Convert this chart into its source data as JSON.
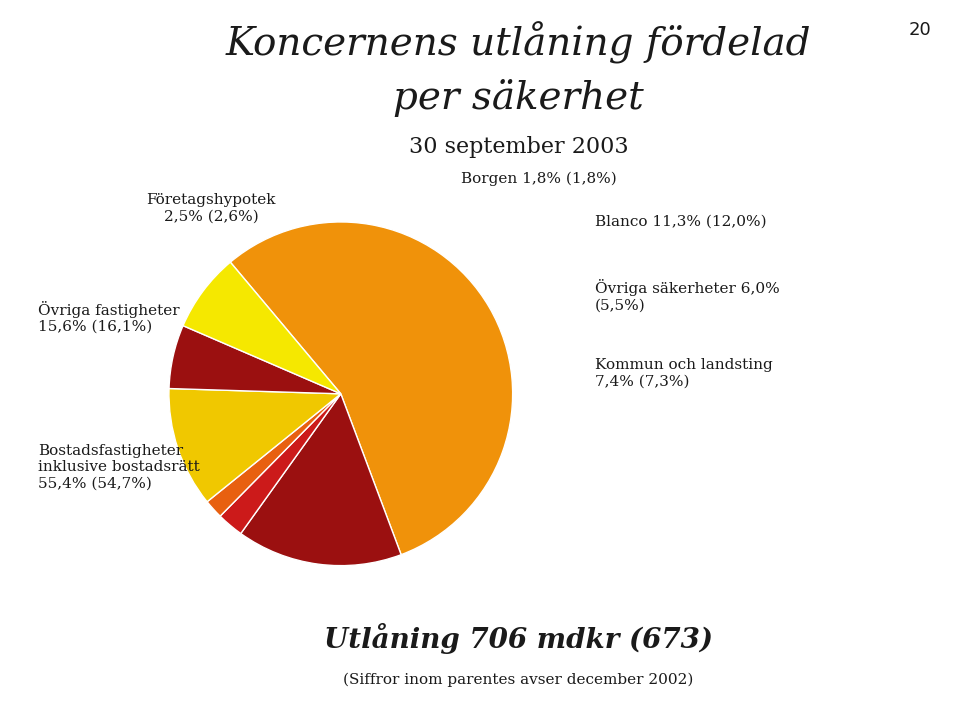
{
  "title_line1": "Koncernens utlåning fördelad",
  "title_line2": "per säkerhet",
  "subtitle": "30 september 2003",
  "page_number": "20",
  "slices": [
    {
      "label": "Bostadsfastigheter\ninklusive bostadsrätt\n55,4% (54,7%)",
      "value": 55.4,
      "color": "#F0920A",
      "label_pos": "left-bottom"
    },
    {
      "label": "Övriga fastigheter\n15,6% (16,1%)",
      "value": 15.6,
      "color": "#9B1010",
      "label_pos": "left"
    },
    {
      "label": "Företagshypotek\n2,5% (2,6%)",
      "value": 2.5,
      "color": "#CC1A1A",
      "label_pos": "top-left"
    },
    {
      "label": "Borgen 1,8% (1,8%)",
      "value": 1.8,
      "color": "#E86010",
      "label_pos": "top"
    },
    {
      "label": "Blanco 11,3% (12,0%)",
      "value": 11.3,
      "color": "#F0C800",
      "label_pos": "top-right"
    },
    {
      "label": "Övriga säkerheter 6,0%\n(5,5%)",
      "value": 6.0,
      "color": "#9B1010",
      "label_pos": "right"
    },
    {
      "label": "Kommun och landsting\n7,4% (7,3%)",
      "value": 7.4,
      "color": "#F5E800",
      "label_pos": "right-bottom"
    }
  ],
  "bottom_text1": "Utlåning 706 mdkr (673)",
  "bottom_text2": "(Siffror inom parentes avser december 2002)",
  "bg_color": "#FFFFFF",
  "text_color": "#1a1a1a",
  "startangle": 130,
  "title_fontsize": 28,
  "subtitle_fontsize": 16,
  "label_fontsize": 11
}
